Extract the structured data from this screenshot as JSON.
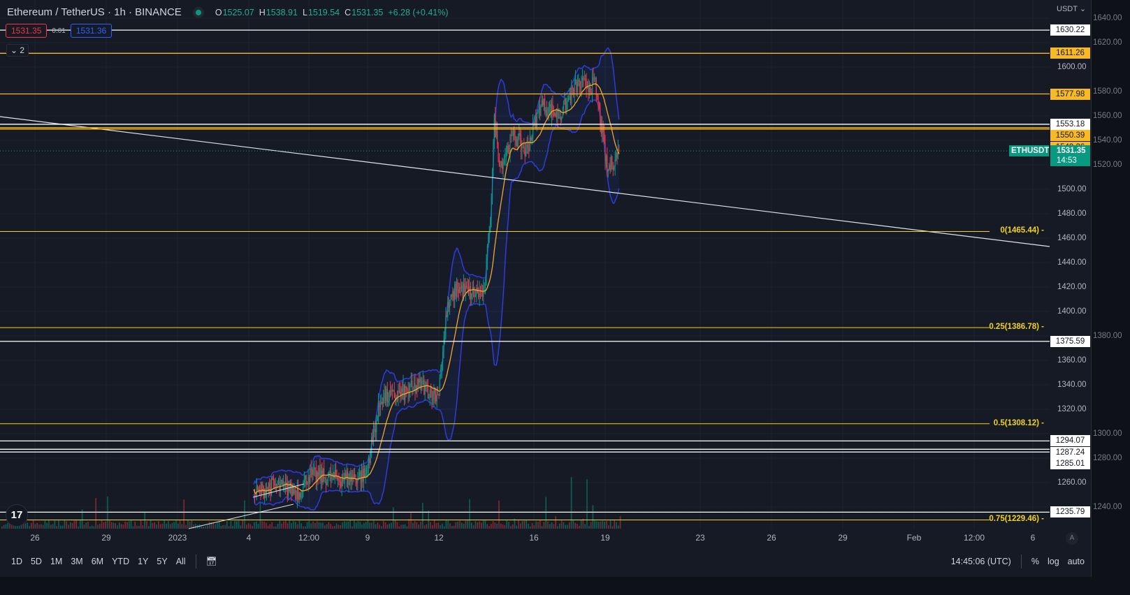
{
  "header": {
    "symbol": "Ethereum / TetherUS · 1h · BINANCE",
    "status": "market-open",
    "o_label": "O",
    "o": "1525.07",
    "h_label": "H",
    "h": "1538.91",
    "l_label": "L",
    "l": "1519.54",
    "c_label": "C",
    "c": "1531.35",
    "change": "+6.28 (+0.41%)"
  },
  "quote": {
    "bid": "1531.35",
    "spread": "0.01",
    "ask": "1531.36"
  },
  "indicators_toggle": "2",
  "price_axis": {
    "currency": "USDT",
    "ticks": [
      "1640.00",
      "1620.00",
      "1600.00",
      "1580.00",
      "1560.00",
      "1540.00",
      "1520.00",
      "1500.00",
      "1480.00",
      "1460.00",
      "1440.00",
      "1420.00",
      "1400.00",
      "1380.00",
      "1360.00",
      "1340.00",
      "1320.00",
      "1300.00",
      "1280.00",
      "1260.00",
      "1240.00"
    ],
    "current": {
      "symbol": "ETHUSDT",
      "price": "1531.35",
      "countdown": "14:53",
      "color": "#089981"
    }
  },
  "levels": {
    "white": [
      "1630.22",
      "1553.18",
      "1375.59",
      "1294.07",
      "1287.24",
      "1285.01",
      "1235.79"
    ],
    "orange": [
      "1611.26",
      "1577.98",
      "1550.39",
      "1549.26"
    ],
    "fib": [
      {
        "label": "0(1465.44)",
        "value": 1465.44
      },
      {
        "label": "0.25(1386.78)",
        "value": 1386.78
      },
      {
        "label": "0.5(1308.12)",
        "value": 1308.12
      },
      {
        "label": "0.75(1229.46)",
        "value": 1229.46
      }
    ],
    "colors": {
      "white": "#ffffff",
      "orange": "#f7b924",
      "fib": "#f0d21f"
    }
  },
  "time_axis": [
    "26",
    "29",
    "2023",
    "4",
    "12:00",
    "9",
    "12",
    "16",
    "19",
    "23",
    "26",
    "29",
    "Feb",
    "12:00",
    "6"
  ],
  "chart_data": {
    "type": "candlestick",
    "symbol": "ETHUSDT",
    "interval": "1h",
    "approx_closes": [
      [
        "2023-01-04 05:00",
        1250
      ],
      [
        "2023-01-05 00:00",
        1258
      ],
      [
        "2023-01-06 03:00",
        1252
      ],
      [
        "2023-01-06 12:00",
        1266
      ],
      [
        "2023-01-07 23:00",
        1263
      ],
      [
        "2023-01-08 22:00",
        1266
      ],
      [
        "2023-01-09 06:00",
        1300
      ],
      [
        "2023-01-09 14:00",
        1330
      ],
      [
        "2023-01-10 02:00",
        1330
      ],
      [
        "2023-01-11 06:00",
        1340
      ],
      [
        "2023-01-11 23:00",
        1330
      ],
      [
        "2023-01-12 08:00",
        1400
      ],
      [
        "2023-01-12 18:00",
        1420
      ],
      [
        "2023-01-13 08:00",
        1415
      ],
      [
        "2023-01-13 22:00",
        1415
      ],
      [
        "2023-01-14 04:00",
        1480
      ],
      [
        "2023-01-14 08:00",
        1555
      ],
      [
        "2023-01-14 14:00",
        1520
      ],
      [
        "2023-01-15 04:00",
        1545
      ],
      [
        "2023-01-15 16:00",
        1530
      ],
      [
        "2023-01-16 07:00",
        1570
      ],
      [
        "2023-01-17 02:00",
        1560
      ],
      [
        "2023-01-17 19:00",
        1585
      ],
      [
        "2023-01-18 14:00",
        1585
      ],
      [
        "2023-01-18 22:00",
        1540
      ],
      [
        "2023-01-19 02:00",
        1515
      ],
      [
        "2023-01-19 14:00",
        1531.35
      ]
    ],
    "indicators": [
      "Bollinger Bands",
      "Moving Average"
    ],
    "up_color": "#089981",
    "down_color": "#f23645"
  },
  "toolbar": {
    "ranges": [
      "1D",
      "5D",
      "1M",
      "3M",
      "6M",
      "YTD",
      "1Y",
      "5Y",
      "All"
    ],
    "clock": "14:45:06 (UTC)",
    "percent": "%",
    "log": "log",
    "auto": "auto",
    "auto_btn": "A"
  },
  "logo": "TV"
}
